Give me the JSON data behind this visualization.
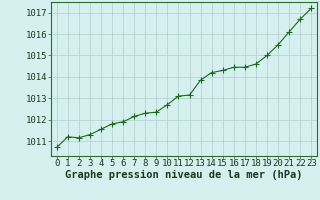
{
  "x": [
    0,
    1,
    2,
    3,
    4,
    5,
    6,
    7,
    8,
    9,
    10,
    11,
    12,
    13,
    14,
    15,
    16,
    17,
    18,
    19,
    20,
    21,
    22,
    23
  ],
  "y": [
    1010.7,
    1011.2,
    1011.15,
    1011.3,
    1011.55,
    1011.8,
    1011.9,
    1012.15,
    1012.3,
    1012.35,
    1012.7,
    1013.1,
    1013.15,
    1013.85,
    1014.2,
    1014.3,
    1014.45,
    1014.45,
    1014.6,
    1015.0,
    1015.5,
    1016.1,
    1016.7,
    1017.2
  ],
  "line_color": "#1a6b1a",
  "marker": "+",
  "marker_size": 4,
  "linewidth": 0.8,
  "bg_color": "#d6f0f0",
  "grid_color": "#aecece",
  "ylabel_ticks": [
    1011,
    1012,
    1013,
    1014,
    1015,
    1016,
    1017
  ],
  "xlabel": "Graphe pression niveau de la mer (hPa)",
  "xlabel_fontsize": 7.5,
  "tick_fontsize": 6.5,
  "ylim": [
    1010.3,
    1017.5
  ],
  "xlim": [
    -0.5,
    23.5
  ]
}
